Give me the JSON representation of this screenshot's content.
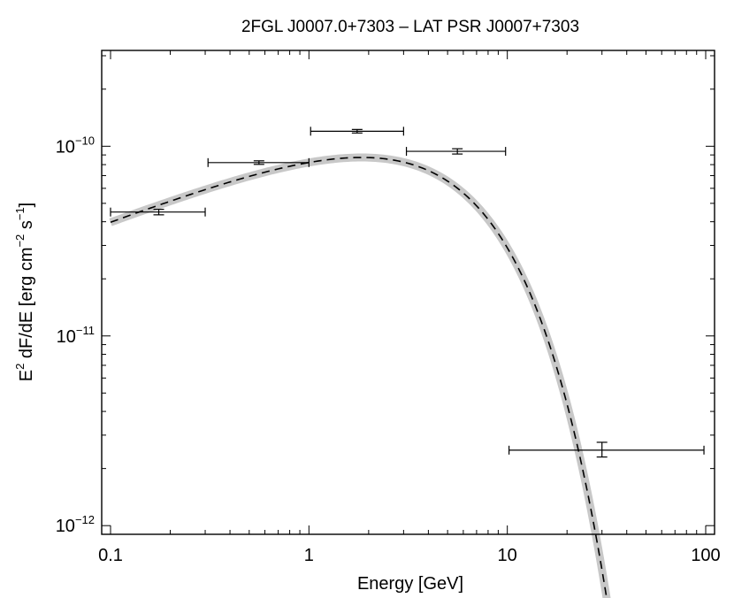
{
  "chart_data": {
    "type": "scatter",
    "title": "2FGL J0007.0+7303 – LAT PSR J0007+7303",
    "xlabel": "Energy [GeV]",
    "ylabel_parts": {
      "e": "E",
      "sq": "2",
      "body": " dF/dE [erg cm",
      "m2": "−2",
      "s": " s",
      "m1": "−1",
      "close": "]"
    },
    "xscale": "log",
    "yscale": "log",
    "xlim": [
      0.1,
      100
    ],
    "ylim": [
      9e-13,
      3.2e-10
    ],
    "x_ticks": [
      {
        "value": 0.1,
        "label": "0.1"
      },
      {
        "value": 1,
        "label": "1"
      },
      {
        "value": 10,
        "label": "10"
      },
      {
        "value": 100,
        "label": "100"
      }
    ],
    "y_ticks": [
      {
        "value": 1e-12,
        "base": "10",
        "exp": "−12"
      },
      {
        "value": 1e-11,
        "base": "10",
        "exp": "−11"
      },
      {
        "value": 1e-10,
        "base": "10",
        "exp": "−10"
      }
    ],
    "data_points": [
      {
        "x": 0.175,
        "xlo": 0.1,
        "xhi": 0.3,
        "y": 4.5e-11,
        "ylo": 4.35e-11,
        "yhi": 4.65e-11
      },
      {
        "x": 0.56,
        "xlo": 0.31,
        "xhi": 1.0,
        "y": 8.2e-11,
        "ylo": 8.1e-11,
        "yhi": 8.3e-11
      },
      {
        "x": 1.75,
        "xlo": 1.02,
        "xhi": 3.0,
        "y": 1.2e-10,
        "ylo": 1.19e-10,
        "yhi": 1.21e-10
      },
      {
        "x": 5.6,
        "xlo": 3.1,
        "xhi": 9.8,
        "y": 9.4e-11,
        "ylo": 9.1e-11,
        "yhi": 9.7e-11
      },
      {
        "x": 30.0,
        "xlo": 10.2,
        "xhi": 98.0,
        "y": 2.5e-12,
        "ylo": 2.3e-12,
        "yhi": 2.75e-12
      }
    ],
    "model": {
      "type": "power law with exponential cutoff (E² dF/dE)",
      "norm_at_1GeV": 1.02e-10,
      "index_term": 0.4,
      "cutoff_GeV": 4.6,
      "x_range": [
        0.1,
        33
      ]
    },
    "series": [
      {
        "name": "model best fit",
        "style": "dashed black line"
      },
      {
        "name": "model uncertainty band",
        "style": "grey band"
      },
      {
        "name": "data points",
        "style": "black error bars"
      }
    ]
  }
}
